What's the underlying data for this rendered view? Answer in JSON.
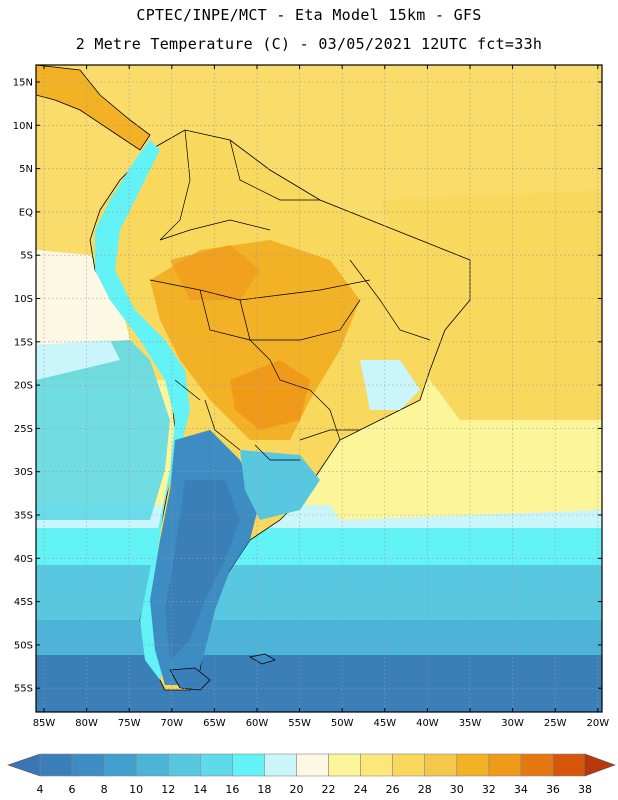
{
  "header": {
    "line1": "CPTEC/INPE/MCT -  Eta Model 15km - GFS",
    "line2": "2 Metre Temperature (C) - 03/05/2021 12UTC fct=33h"
  },
  "axes": {
    "lat_labels": [
      "15N",
      "10N",
      "5N",
      "EQ",
      "5S",
      "10S",
      "15S",
      "20S",
      "25S",
      "30S",
      "35S",
      "40S",
      "45S",
      "50S",
      "55S"
    ],
    "lon_labels": [
      "85W",
      "80W",
      "75W",
      "70W",
      "65W",
      "60W",
      "55W",
      "50W",
      "45W",
      "40W",
      "35W",
      "30W",
      "25W",
      "20W"
    ]
  },
  "colorbar": {
    "labels": [
      "4",
      "6",
      "8",
      "10",
      "12",
      "14",
      "16",
      "18",
      "20",
      "22",
      "24",
      "26",
      "28",
      "30",
      "32",
      "34",
      "36",
      "38"
    ],
    "colors": [
      "#3a7fb8",
      "#3d8cc4",
      "#42a0cf",
      "#4cb3d9",
      "#58c8e1",
      "#5fdaea",
      "#63f2f6",
      "#c9f5fb",
      "#fdf8e3",
      "#fdf59a",
      "#fbe77a",
      "#f9d85e",
      "#f5c84a",
      "#f3b126",
      "#ef9a19",
      "#e57813",
      "#d7560c",
      "#b8380a"
    ],
    "low_arrow_color": "#3a76b5",
    "high_arrow_color": "#b8380a"
  },
  "map": {
    "ocean_north_color": "#f9dc6a",
    "ocean_mid_color": "#fdf59a",
    "ocean_south_color": "#4cb3d9",
    "ocean_far_south_color": "#3a7fb8",
    "land_hot_color": "#f3b126",
    "land_warm_color": "#f9d85e",
    "andes_color": "#63f2f6",
    "patagonia_color": "#3d8cc4"
  }
}
